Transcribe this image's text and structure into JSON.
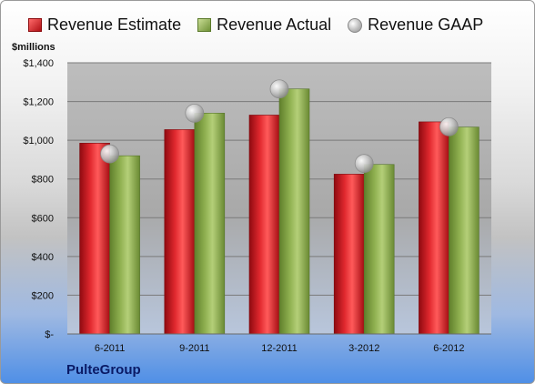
{
  "company": "PulteGroup",
  "unit_label": "$millions",
  "legend": {
    "estimate": "Revenue Estimate",
    "actual": "Revenue Actual",
    "gaap": "Revenue GAAP"
  },
  "colors": {
    "estimate": "#c8161d",
    "actual": "#8aab4c",
    "gaap": "#c0c0c0",
    "company_text": "#0a1a66"
  },
  "chart_data": {
    "type": "bar",
    "title": "",
    "xlabel": "",
    "ylabel": "$millions",
    "categories": [
      "6-2011",
      "9-2011",
      "12-2011",
      "3-2012",
      "6-2012"
    ],
    "series": [
      {
        "name": "Revenue Estimate",
        "values": [
          985,
          1055,
          1130,
          825,
          1095
        ]
      },
      {
        "name": "Revenue Actual",
        "values": [
          920,
          1140,
          1265,
          875,
          1068
        ]
      },
      {
        "name": "Revenue GAAP",
        "values": [
          930,
          1140,
          1265,
          880,
          1070
        ]
      }
    ],
    "ylim": [
      0,
      1400
    ],
    "yticks": [
      0,
      200,
      400,
      600,
      800,
      1000,
      1200,
      1400
    ],
    "ytick_labels": [
      "$-",
      "$200",
      "$400",
      "$600",
      "$800",
      "$1,000",
      "$1,200",
      "$1,400"
    ],
    "grid": true,
    "legend_position": "top"
  }
}
